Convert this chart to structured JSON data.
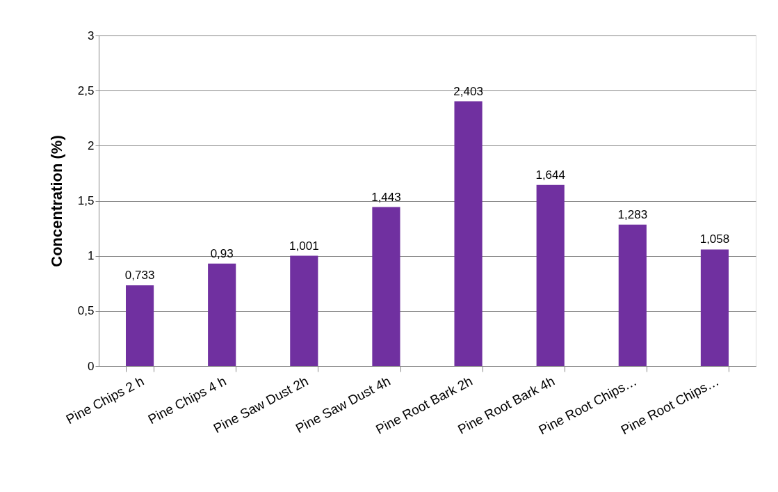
{
  "chart_data": {
    "type": "bar",
    "ylabel": "Concentration (%)",
    "categories": [
      "Pine Chips 2 h",
      "Pine Chips 4 h",
      "Pine Saw Dust 2h",
      "Pine Saw Dust 4h",
      "Pine Root Bark 2h",
      "Pine Root Bark 4h",
      "Pine Root Chips…",
      "Pine Root Chips…"
    ],
    "values": [
      0.733,
      0.93,
      1.001,
      1.443,
      2.403,
      1.644,
      1.283,
      1.058
    ],
    "value_labels": [
      "0,733",
      "0,93",
      "1,001",
      "1,443",
      "2,403",
      "1,644",
      "1,283",
      "1,058"
    ],
    "color": "#7030a0",
    "ylim": [
      0,
      3
    ],
    "yticks": [
      0,
      {
        "value": 0.5,
        "label": "0,5"
      },
      1,
      {
        "value": 1.5,
        "label": "1,5"
      },
      2,
      {
        "value": 2.5,
        "label": "2,5"
      },
      3
    ],
    "grid": "y"
  }
}
